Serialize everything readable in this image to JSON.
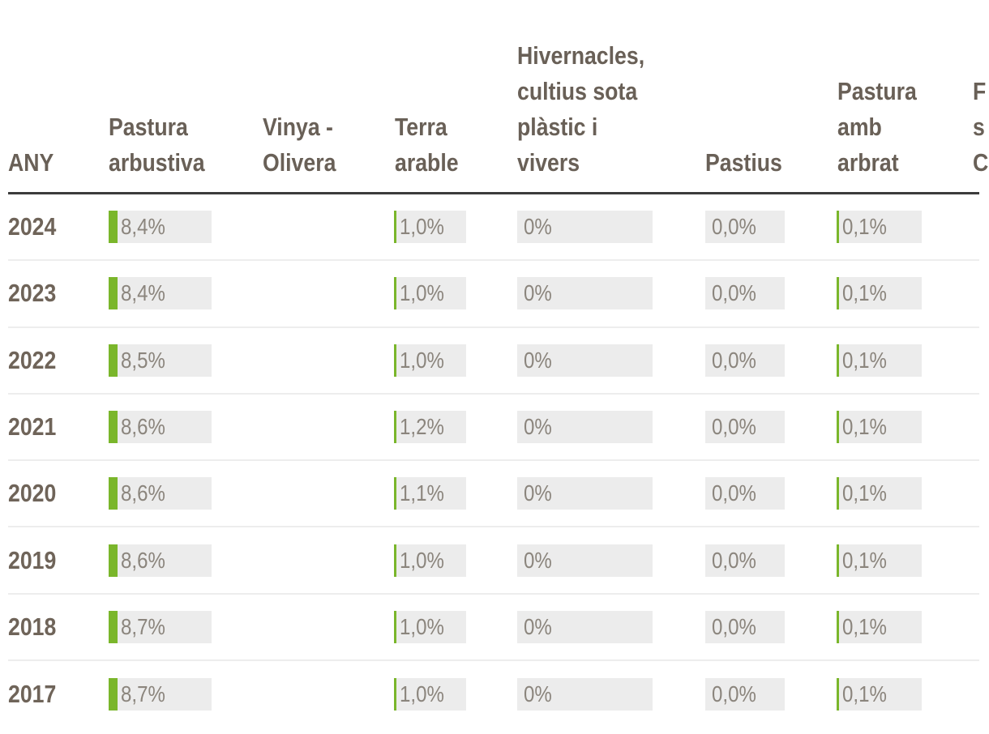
{
  "colors": {
    "bar_fill_green": "#7ab62b",
    "bar_background": "#ececec",
    "header_text": "#696057",
    "year_text": "#6f6459",
    "value_text": "#8b857d",
    "header_divider": "#3b3b3b",
    "row_separator": "#ededed"
  },
  "chart_data": {
    "type": "table",
    "year_column_header": "ANY",
    "columns": [
      {
        "id": "any",
        "label": "ANY",
        "lines": [
          "ANY"
        ]
      },
      {
        "id": "pastura_arbustiva",
        "label": "Pastura arbustiva",
        "lines": [
          "Pastura",
          "arbustiva"
        ]
      },
      {
        "id": "vinya_olivera",
        "label": "Vinya - Olivera",
        "lines": [
          "Vinya -",
          "Olivera"
        ]
      },
      {
        "id": "terra_arable",
        "label": "Terra arable",
        "lines": [
          "Terra",
          "arable"
        ]
      },
      {
        "id": "hivernacles",
        "label": "Hivernacles, cultius sota plàstic i vivers",
        "lines": [
          "Hivernacles,",
          "cultius sota",
          "plàstic i",
          "vivers"
        ]
      },
      {
        "id": "pastius",
        "label": "Pastius",
        "lines": [
          "Pastius"
        ]
      },
      {
        "id": "pastura_amb_arbrat",
        "label": "Pastura amb arbrat",
        "lines": [
          "Pastura",
          "amb",
          "arbrat"
        ]
      },
      {
        "id": "clipped_column",
        "lines": [
          "F",
          "s",
          "C"
        ]
      }
    ],
    "rows": [
      {
        "year": "2024",
        "pastura_arbustiva": {
          "label": "8,4%",
          "pct": 8.4
        },
        "vinya_olivera": {
          "label": "",
          "pct": null
        },
        "terra_arable": {
          "label": "1,0%",
          "pct": 1.0
        },
        "hivernacles": {
          "label": "0%",
          "pct": 0
        },
        "pastius": {
          "label": "0,0%",
          "pct": 0
        },
        "pastura_amb_arbrat": {
          "label": "0,1%",
          "pct": 0.1
        }
      },
      {
        "year": "2023",
        "pastura_arbustiva": {
          "label": "8,4%",
          "pct": 8.4
        },
        "vinya_olivera": {
          "label": "",
          "pct": null
        },
        "terra_arable": {
          "label": "1,0%",
          "pct": 1.0
        },
        "hivernacles": {
          "label": "0%",
          "pct": 0
        },
        "pastius": {
          "label": "0,0%",
          "pct": 0
        },
        "pastura_amb_arbrat": {
          "label": "0,1%",
          "pct": 0.1
        }
      },
      {
        "year": "2022",
        "pastura_arbustiva": {
          "label": "8,5%",
          "pct": 8.5
        },
        "vinya_olivera": {
          "label": "",
          "pct": null
        },
        "terra_arable": {
          "label": "1,0%",
          "pct": 1.0
        },
        "hivernacles": {
          "label": "0%",
          "pct": 0
        },
        "pastius": {
          "label": "0,0%",
          "pct": 0
        },
        "pastura_amb_arbrat": {
          "label": "0,1%",
          "pct": 0.1
        }
      },
      {
        "year": "2021",
        "pastura_arbustiva": {
          "label": "8,6%",
          "pct": 8.6
        },
        "vinya_olivera": {
          "label": "",
          "pct": null
        },
        "terra_arable": {
          "label": "1,2%",
          "pct": 1.2
        },
        "hivernacles": {
          "label": "0%",
          "pct": 0
        },
        "pastius": {
          "label": "0,0%",
          "pct": 0
        },
        "pastura_amb_arbrat": {
          "label": "0,1%",
          "pct": 0.1
        }
      },
      {
        "year": "2020",
        "pastura_arbustiva": {
          "label": "8,6%",
          "pct": 8.6
        },
        "vinya_olivera": {
          "label": "",
          "pct": null
        },
        "terra_arable": {
          "label": "1,1%",
          "pct": 1.1
        },
        "hivernacles": {
          "label": "0%",
          "pct": 0
        },
        "pastius": {
          "label": "0,0%",
          "pct": 0
        },
        "pastura_amb_arbrat": {
          "label": "0,1%",
          "pct": 0.1
        }
      },
      {
        "year": "2019",
        "pastura_arbustiva": {
          "label": "8,6%",
          "pct": 8.6
        },
        "vinya_olivera": {
          "label": "",
          "pct": null
        },
        "terra_arable": {
          "label": "1,0%",
          "pct": 1.0
        },
        "hivernacles": {
          "label": "0%",
          "pct": 0
        },
        "pastius": {
          "label": "0,0%",
          "pct": 0
        },
        "pastura_amb_arbrat": {
          "label": "0,1%",
          "pct": 0.1
        }
      },
      {
        "year": "2018",
        "pastura_arbustiva": {
          "label": "8,7%",
          "pct": 8.7
        },
        "vinya_olivera": {
          "label": "",
          "pct": null
        },
        "terra_arable": {
          "label": "1,0%",
          "pct": 1.0
        },
        "hivernacles": {
          "label": "0%",
          "pct": 0
        },
        "pastius": {
          "label": "0,0%",
          "pct": 0
        },
        "pastura_amb_arbrat": {
          "label": "0,1%",
          "pct": 0.1
        }
      },
      {
        "year": "2017",
        "pastura_arbustiva": {
          "label": "8,7%",
          "pct": 8.7
        },
        "vinya_olivera": {
          "label": "",
          "pct": null
        },
        "terra_arable": {
          "label": "1,0%",
          "pct": 1.0
        },
        "hivernacles": {
          "label": "0%",
          "pct": 0
        },
        "pastius": {
          "label": "0,0%",
          "pct": 0
        },
        "pastura_amb_arbrat": {
          "label": "0,1%",
          "pct": 0.1
        }
      }
    ]
  }
}
